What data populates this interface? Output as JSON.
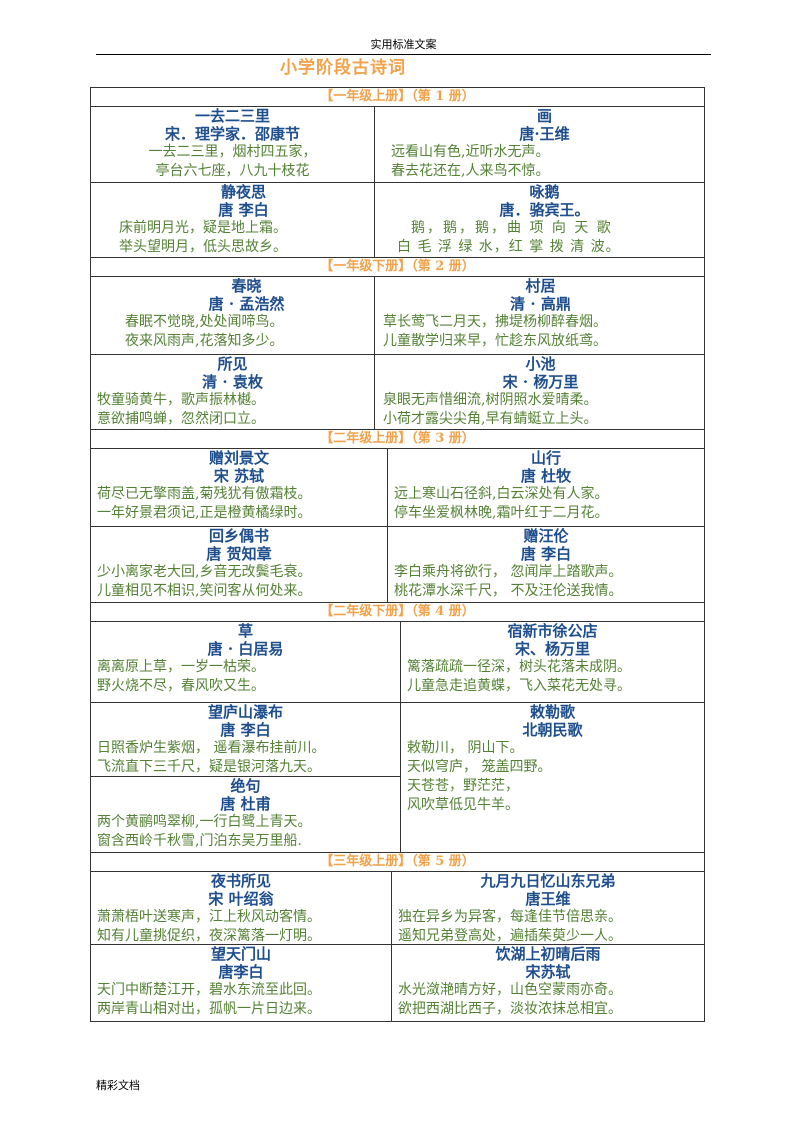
{
  "header": "实用标准文案",
  "doc_title": "小学阶段古诗词",
  "footer": "精彩文档",
  "sections": [
    {
      "grade": "【一年级上册】（第 1 册）",
      "rows": [
        [
          {
            "title": "一去二三里",
            "author": "宋．理学家．邵康节",
            "lines": [
              "一去二三里，烟村四五家，",
              "亭台六七座，八九十枝花"
            ]
          },
          {
            "title": "画",
            "author": "唐·王维",
            "lines": [
              "远看山有色,近听水无声。",
              "春去花还在,人来鸟不惊。"
            ]
          }
        ],
        [
          {
            "title": "静夜思",
            "author": "唐 李白",
            "lines": [
              "床前明月光，疑是地上霜。",
              "举头望明月，低头思故乡。"
            ]
          },
          {
            "title": "咏鹅",
            "author": "唐．骆宾王。",
            "lines": [
              "鹅，鹅，鹅，曲 项 向 天 歌",
              "白 毛 浮 绿 水，红 掌 拨 清 波。"
            ]
          }
        ]
      ]
    },
    {
      "grade": "【一年级下册】（第 2 册）",
      "rows": [
        [
          {
            "title": "春晓",
            "author": "唐 · 孟浩然",
            "lines": [
              "春眠不觉晓,处处闻啼鸟。",
              "夜来风雨声,花落知多少。"
            ]
          },
          {
            "title": "村居",
            "author": "清 · 高鼎",
            "lines": [
              "草长莺飞二月天，拂堤杨柳醉春烟。",
              "儿童散学归来早，忙趁东风放纸鸢。"
            ]
          }
        ],
        [
          {
            "title": "所见",
            "author": "清 · 袁枚",
            "lines": [
              "牧童骑黄牛，歌声振林樾。",
              "意欲捕鸣蝉，忽然闭口立。"
            ]
          },
          {
            "title": "小池",
            "author": "宋 · 杨万里",
            "lines": [
              "泉眼无声惜细流,树阴照水爱晴柔。",
              "小荷才露尖尖角,早有蜻蜓立上头。"
            ]
          }
        ]
      ]
    },
    {
      "grade": "【二年级上册】（第 3 册）",
      "rows": [
        [
          {
            "title": "赠刘景文",
            "author": "宋 苏轼",
            "lines": [
              "荷尽已无擎雨盖,菊残犹有傲霜枝。",
              "一年好景君须记,正是橙黄橘绿时。"
            ]
          },
          {
            "title": "山行",
            "author": "唐 杜牧",
            "lines": [
              "远上寒山石径斜,白云深处有人家。",
              "停车坐爱枫林晚,霜叶红于二月花。"
            ]
          }
        ],
        [
          {
            "title": "回乡偶书",
            "author": "唐 贺知章",
            "lines": [
              "少小离家老大回,乡音无改鬓毛衰。",
              "儿童相见不相识,笑问客从何处来。"
            ]
          },
          {
            "title": "赠汪伦",
            "author": "唐 李白",
            "lines": [
              "李白乘舟将欲行， 忽闻岸上踏歌声。",
              "桃花潭水深千尺， 不及汪伦送我情。"
            ]
          }
        ]
      ]
    },
    {
      "grade": "【二年级下册】（第 4 册）",
      "rows": [
        [
          {
            "title": "草",
            "author": "唐 · 白居易",
            "lines": [
              "离离原上草，一岁一枯荣。",
              "野火烧不尽，春风吹又生。"
            ]
          },
          {
            "title": "宿新市徐公店",
            "author": "宋、杨万里",
            "lines": [
              "篱落疏疏一径深，树头花落未成阴。",
              "儿童急走追黄蝶，飞入菜花无处寻。"
            ]
          }
        ]
      ],
      "special": {
        "left": [
          {
            "title": "望庐山瀑布",
            "author": "唐 李白",
            "lines": [
              "日照香炉生紫烟， 遥看瀑布挂前川。",
              "飞流直下三千尺，疑是银河落九天。"
            ]
          },
          {
            "title": "绝句",
            "author": "唐 杜甫",
            "lines": [
              "两个黄鹂鸣翠柳,一行白鹭上青天。",
              "窗含西岭千秋雪,门泊东吴万里船."
            ]
          }
        ],
        "right": {
          "title": "敕勒歌",
          "author": "北朝民歌",
          "lines": [
            "敕勒川， 阴山下。",
            "天似穹庐， 笼盖四野。",
            "天苍苍，野茫茫，",
            "风吹草低见牛羊。"
          ]
        }
      }
    },
    {
      "grade": "【三年级上册】（第 5 册）",
      "rows": [
        [
          {
            "title": "夜书所见",
            "author": "宋 叶绍翁",
            "lines": [
              "萧萧梧叶送寒声，江上秋风动客情。",
              "知有儿童挑促织，夜深篱落一灯明。"
            ]
          },
          {
            "title": "九月九日忆山东兄弟",
            "author": "唐王维",
            "lines": [
              "独在异乡为异客，每逢佳节倍思亲。",
              "遥知兄弟登高处，遍插茱萸少一人。"
            ]
          }
        ],
        [
          {
            "title": "望天门山",
            "author": "唐李白",
            "lines": [
              "天门中断楚江开，碧水东流至此回。",
              "两岸青山相对出，孤帆一片日边来。"
            ]
          },
          {
            "title": "饮湖上初晴后雨",
            "author": "宋苏轼",
            "lines": [
              "水光潋滟晴方好，山色空蒙雨亦奇。",
              "欲把西湖比西子，淡妆浓抹总相宜。"
            ]
          }
        ]
      ]
    }
  ]
}
